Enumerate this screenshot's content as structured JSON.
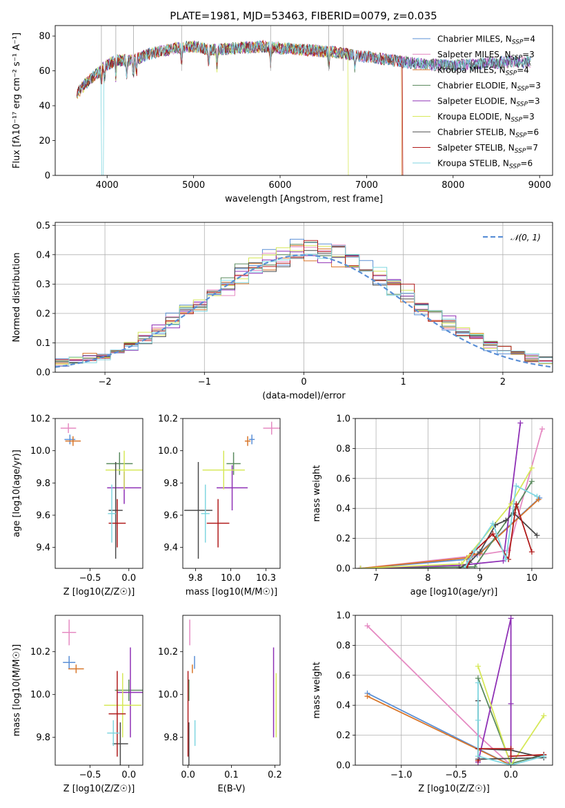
{
  "figure": {
    "title": "PLATE=1981, MJD=53463, FIBERID=0079, z=0.035"
  },
  "colors": {
    "Chabrier MILES": "#5a8fd6",
    "Salpeter MILES": "#e58ac2",
    "Kroupa MILES": "#d8762a",
    "Chabrier ELODIE": "#5a8a5e",
    "Salpeter ELODIE": "#8e2fb5",
    "Kroupa ELODIE": "#d6e858",
    "Chabrier STELIB": "#4a4a4a",
    "Salpeter STELIB": "#b01a1a",
    "Kroupa STELIB": "#7fd6e0"
  },
  "chart_data": [
    {
      "id": "spectrum",
      "type": "line",
      "xlabel": "wavelength [Angstrom, rest frame]",
      "ylabel": "Flux [fλ10⁻¹⁷ erg cm⁻² s⁻¹ A⁻¹]",
      "xlim": [
        3400,
        9150
      ],
      "ylim": [
        0,
        86
      ],
      "xticks": [
        4000,
        5000,
        6000,
        7000,
        8000,
        9000
      ],
      "yticks": [
        0,
        20,
        40,
        60,
        80
      ],
      "legend": [
        {
          "name": "Chabrier MILES, N",
          "sub": "SSP",
          "rest": "=4"
        },
        {
          "name": "Salpeter MILES, N",
          "sub": "SSP",
          "rest": "=3"
        },
        {
          "name": "Kroupa MILES, N",
          "sub": "SSP",
          "rest": "=4"
        },
        {
          "name": "Chabrier ELODIE, N",
          "sub": "SSP",
          "rest": "=3"
        },
        {
          "name": "Salpeter ELODIE, N",
          "sub": "SSP",
          "rest": "=3"
        },
        {
          "name": "Kroupa ELODIE, N",
          "sub": "SSP",
          "rest": "=3"
        },
        {
          "name": "Chabrier STELIB, N",
          "sub": "SSP",
          "rest": "=6"
        },
        {
          "name": "Salpeter STELIB, N",
          "sub": "SSP",
          "rest": "=7"
        },
        {
          "name": "Kroupa STELIB, N",
          "sub": "SSP",
          "rest": "=6"
        }
      ],
      "legend_placement": "top-right",
      "continuum": [
        [
          3650,
          46
        ],
        [
          3700,
          50
        ],
        [
          3800,
          55
        ],
        [
          3900,
          59
        ],
        [
          3950,
          62
        ],
        [
          4100,
          66
        ],
        [
          4300,
          66
        ],
        [
          4500,
          70
        ],
        [
          4800,
          73
        ],
        [
          5000,
          74
        ],
        [
          5200,
          72
        ],
        [
          5500,
          73
        ],
        [
          5800,
          74
        ],
        [
          6000,
          73
        ],
        [
          6300,
          72
        ],
        [
          6600,
          71
        ],
        [
          7000,
          68
        ],
        [
          7300,
          66
        ],
        [
          7600,
          64
        ],
        [
          8000,
          63
        ],
        [
          8300,
          64
        ],
        [
          8600,
          65
        ],
        [
          8900,
          65
        ]
      ],
      "absorption_lines": [
        3934,
        3969,
        4101,
        4227,
        4304,
        4340,
        4861,
        5175,
        5270,
        5890,
        6563,
        6867
      ],
      "cutoffs": [
        {
          "series": "Kroupa MILES",
          "at": 7410
        },
        {
          "series": "Salpeter STELIB",
          "at": 7420
        },
        {
          "series": "Kroupa ELODIE",
          "at": 6790
        }
      ]
    },
    {
      "id": "residuals",
      "type": "line",
      "xlabel": "(data-model)/error",
      "ylabel": "Normed distribution",
      "xlim": [
        -2.5,
        2.5
      ],
      "ylim": [
        0,
        0.51
      ],
      "xticks": [
        -2,
        -1,
        0,
        1,
        2
      ],
      "yticks": [
        0.0,
        0.1,
        0.2,
        0.3,
        0.4,
        0.5
      ],
      "grid": true,
      "legend": [
        {
          "name": "𝒩(0, 1)"
        }
      ],
      "legend_placement": "top-right",
      "gaussian": {
        "mean": 0,
        "sigma": 1
      }
    },
    {
      "id": "age-vs-Z",
      "type": "scatter",
      "xlabel": "Z [log10(Z/Z☉)]",
      "ylabel": "age  [log10(age/yr)]",
      "xlim": [
        -0.95,
        0.18
      ],
      "ylim": [
        9.27,
        10.2
      ],
      "xticks": [
        -0.5,
        0.0
      ],
      "yticks": [
        9.4,
        9.6,
        9.8,
        10.0,
        10.2
      ],
      "points": [
        {
          "series": "Chabrier MILES",
          "x": -0.76,
          "y": 10.07,
          "xerr": 0.07,
          "yerr": 0.03
        },
        {
          "series": "Salpeter MILES",
          "x": -0.78,
          "y": 10.14,
          "xerr": 0.1,
          "yerr": 0.03
        },
        {
          "series": "Kroupa MILES",
          "x": -0.72,
          "y": 10.06,
          "xerr": 0.1,
          "yerr": 0.03
        },
        {
          "series": "Chabrier ELODIE",
          "x": -0.12,
          "y": 9.92,
          "xerr": 0.17,
          "yerr": 0.07
        },
        {
          "series": "Salpeter ELODIE",
          "x": -0.06,
          "y": 9.77,
          "xerr": 0.22,
          "yerr": 0.1
        },
        {
          "series": "Kroupa ELODIE",
          "x": -0.06,
          "y": 9.88,
          "xerr": 0.24,
          "yerr": 0.12
        },
        {
          "series": "Chabrier STELIB",
          "x": -0.17,
          "y": 9.63,
          "xerr": 0.09,
          "yerr": 0.3
        },
        {
          "series": "Salpeter STELIB",
          "x": -0.15,
          "y": 9.55,
          "xerr": 0.11,
          "yerr": 0.15
        },
        {
          "series": "Kroupa STELIB",
          "x": -0.22,
          "y": 9.61,
          "xerr": 0.05,
          "yerr": 0.18
        }
      ]
    },
    {
      "id": "age-vs-mass",
      "type": "scatter",
      "xlabel": "mass [log10(M/M☉)]",
      "ylabel": "",
      "xlim": [
        9.66,
        10.35
      ],
      "ylim": [
        9.27,
        10.2
      ],
      "xticks": [
        9.75,
        10.0,
        10.25
      ],
      "yticks": [
        9.4,
        9.6,
        9.8,
        10.0,
        10.2
      ],
      "points": [
        {
          "series": "Chabrier MILES",
          "x": 10.15,
          "y": 10.07,
          "xerr": 0.02,
          "yerr": 0.03
        },
        {
          "series": "Salpeter MILES",
          "x": 10.29,
          "y": 10.14,
          "xerr": 0.06,
          "yerr": 0.04
        },
        {
          "series": "Kroupa MILES",
          "x": 10.12,
          "y": 10.06,
          "xerr": 0.02,
          "yerr": 0.03
        },
        {
          "series": "Chabrier ELODIE",
          "x": 10.02,
          "y": 9.92,
          "xerr": 0.05,
          "yerr": 0.07
        },
        {
          "series": "Salpeter ELODIE",
          "x": 10.01,
          "y": 9.77,
          "xerr": 0.11,
          "yerr": 0.14
        },
        {
          "series": "Kroupa ELODIE",
          "x": 9.95,
          "y": 9.88,
          "xerr": 0.15,
          "yerr": 0.12
        },
        {
          "series": "Chabrier STELIB",
          "x": 9.77,
          "y": 9.63,
          "xerr": 0.1,
          "yerr": 0.3
        },
        {
          "series": "Salpeter STELIB",
          "x": 9.91,
          "y": 9.55,
          "xerr": 0.08,
          "yerr": 0.15
        },
        {
          "series": "Kroupa STELIB",
          "x": 9.82,
          "y": 9.61,
          "xerr": 0.03,
          "yerr": 0.18
        }
      ]
    },
    {
      "id": "weight-vs-age",
      "type": "line",
      "xlabel": "age  [log10(age/yr)]",
      "ylabel": "mass weight",
      "xlim": [
        6.6,
        10.4
      ],
      "ylim": [
        0,
        1
      ],
      "xticks": [
        7,
        8,
        9,
        10
      ],
      "yticks": [
        0.0,
        0.2,
        0.4,
        0.6,
        0.8,
        1.0
      ],
      "grid": true,
      "series": [
        {
          "name": "Chabrier MILES",
          "points": [
            [
              6.7,
              0
            ],
            [
              8.75,
              0.06
            ],
            [
              8.85,
              0.08
            ],
            [
              8.95,
              0.09
            ],
            [
              10.15,
              0.47
            ]
          ]
        },
        {
          "name": "Salpeter MILES",
          "points": [
            [
              6.7,
              0
            ],
            [
              8.8,
              0.08
            ],
            [
              9.55,
              0.12
            ],
            [
              10.2,
              0.93
            ]
          ]
        },
        {
          "name": "Kroupa MILES",
          "points": [
            [
              6.7,
              0
            ],
            [
              8.75,
              0.07
            ],
            [
              8.85,
              0.09
            ],
            [
              9.0,
              0.1
            ],
            [
              10.13,
              0.46
            ]
          ]
        },
        {
          "name": "Chabrier ELODIE",
          "points": [
            [
              6.7,
              0
            ],
            [
              8.9,
              0.01
            ],
            [
              9.7,
              0.41
            ],
            [
              10.0,
              0.58
            ]
          ]
        },
        {
          "name": "Salpeter ELODIE",
          "points": [
            [
              6.7,
              0
            ],
            [
              8.6,
              0.02
            ],
            [
              9.45,
              0.05
            ],
            [
              9.78,
              0.97
            ]
          ]
        },
        {
          "name": "Kroupa ELODIE",
          "points": [
            [
              6.7,
              0
            ],
            [
              8.65,
              0.03
            ],
            [
              9.6,
              0.43
            ],
            [
              10.0,
              0.67
            ]
          ]
        },
        {
          "name": "Chabrier STELIB",
          "points": [
            [
              8.6,
              0
            ],
            [
              8.8,
              0.04
            ],
            [
              9.0,
              0.11
            ],
            [
              9.3,
              0.29
            ],
            [
              9.5,
              0.32
            ],
            [
              9.65,
              0.37
            ],
            [
              10.1,
              0.22
            ]
          ]
        },
        {
          "name": "Salpeter STELIB",
          "points": [
            [
              8.75,
              0
            ],
            [
              8.85,
              0.1
            ],
            [
              9.25,
              0.23
            ],
            [
              9.55,
              0.06
            ],
            [
              9.7,
              0.43
            ],
            [
              10.0,
              0.11
            ]
          ]
        },
        {
          "name": "Kroupa STELIB",
          "points": [
            [
              8.7,
              0
            ],
            [
              8.9,
              0.12
            ],
            [
              9.25,
              0.3
            ],
            [
              9.5,
              0.06
            ],
            [
              9.7,
              0.55
            ],
            [
              10.1,
              0.48
            ]
          ]
        }
      ]
    },
    {
      "id": "mass-vs-Z",
      "type": "scatter",
      "xlabel": "Z [log10(Z/Z☉)]",
      "ylabel": "mass [log10(M/M☉)]",
      "xlim": [
        -0.95,
        0.18
      ],
      "ylim": [
        9.67,
        10.37
      ],
      "xticks": [
        -0.5,
        0.0
      ],
      "yticks": [
        9.8,
        10.0,
        10.2
      ],
      "points": [
        {
          "series": "Chabrier MILES",
          "x": -0.77,
          "y": 10.15,
          "xerr": 0.08,
          "yerr": 0.03
        },
        {
          "series": "Salpeter MILES",
          "x": -0.77,
          "y": 10.29,
          "xerr": 0.09,
          "yerr": 0.06
        },
        {
          "series": "Kroupa MILES",
          "x": -0.68,
          "y": 10.12,
          "xerr": 0.1,
          "yerr": 0.02
        },
        {
          "series": "Chabrier ELODIE",
          "x": 0.0,
          "y": 10.02,
          "xerr": 0.18,
          "yerr": 0.05
        },
        {
          "series": "Salpeter ELODIE",
          "x": 0.02,
          "y": 10.01,
          "xerr": 0.17,
          "yerr": 0.21
        },
        {
          "series": "Kroupa ELODIE",
          "x": -0.08,
          "y": 9.95,
          "xerr": 0.24,
          "yerr": 0.15
        },
        {
          "series": "Chabrier STELIB",
          "x": -0.11,
          "y": 9.77,
          "xerr": 0.1,
          "yerr": 0.1
        },
        {
          "series": "Salpeter STELIB",
          "x": -0.15,
          "y": 9.91,
          "xerr": 0.11,
          "yerr": 0.2
        },
        {
          "series": "Kroupa STELIB",
          "x": -0.2,
          "y": 9.82,
          "xerr": 0.08,
          "yerr": 0.06
        }
      ]
    },
    {
      "id": "mass-vs-EBV",
      "type": "scatter",
      "xlabel": "E(B-V)",
      "ylabel": "",
      "xlim": [
        -0.012,
        0.212
      ],
      "ylim": [
        9.67,
        10.37
      ],
      "xticks": [
        0.0,
        0.1,
        0.2
      ],
      "yticks": [
        9.8,
        10.0,
        10.2
      ],
      "points": [
        {
          "series": "Chabrier MILES",
          "x": 0.015,
          "y": 10.15,
          "xerr": 0.0,
          "yerr": 0.03
        },
        {
          "series": "Salpeter MILES",
          "x": 0.004,
          "y": 10.29,
          "xerr": 0.0,
          "yerr": 0.06
        },
        {
          "series": "Kroupa MILES",
          "x": 0.01,
          "y": 10.12,
          "xerr": 0.0,
          "yerr": 0.02
        },
        {
          "series": "Chabrier ELODIE",
          "x": 0.002,
          "y": 10.02,
          "xerr": 0.0,
          "yerr": 0.05
        },
        {
          "series": "Salpeter ELODIE",
          "x": 0.197,
          "y": 10.01,
          "xerr": 0.0,
          "yerr": 0.21
        },
        {
          "series": "Kroupa ELODIE",
          "x": 0.203,
          "y": 9.95,
          "xerr": 0.0,
          "yerr": 0.15
        },
        {
          "series": "Chabrier STELIB",
          "x": 0.002,
          "y": 9.77,
          "xerr": 0.0,
          "yerr": 0.1
        },
        {
          "series": "Salpeter STELIB",
          "x": 0.0,
          "y": 9.91,
          "xerr": 0.0,
          "yerr": 0.2
        },
        {
          "series": "Kroupa STELIB",
          "x": 0.016,
          "y": 9.82,
          "xerr": 0.0,
          "yerr": 0.06
        }
      ]
    },
    {
      "id": "weight-vs-Z",
      "type": "line",
      "xlabel": "Z [log10(Z/Z☉)]",
      "ylabel": "mass weight",
      "xlim": [
        -1.42,
        0.38
      ],
      "ylim": [
        0,
        1
      ],
      "xticks": [
        -1.0,
        -0.5,
        0.0
      ],
      "yticks": [
        0.0,
        0.2,
        0.4,
        0.6,
        0.8,
        1.0
      ],
      "grid": true,
      "series": [
        {
          "name": "Chabrier MILES",
          "points": [
            [
              -1.31,
              0.48
            ],
            [
              0.0,
              0.0
            ],
            [
              0.0,
              0.02
            ]
          ]
        },
        {
          "name": "Salpeter MILES",
          "points": [
            [
              -1.31,
              0.93
            ],
            [
              -0.3,
              0.2
            ],
            [
              0.0,
              0.0
            ]
          ]
        },
        {
          "name": "Kroupa MILES",
          "points": [
            [
              -1.31,
              0.46
            ],
            [
              0.0,
              0.0
            ],
            [
              0.0,
              0.01
            ]
          ]
        },
        {
          "name": "Chabrier ELODIE",
          "points": [
            [
              -0.3,
              0.58
            ],
            [
              0.0,
              0.01
            ],
            [
              0.3,
              0.07
            ]
          ]
        },
        {
          "name": "Salpeter ELODIE",
          "points": [
            [
              -0.3,
              0.02
            ],
            [
              0.0,
              0.98
            ],
            [
              0.0,
              0.41
            ],
            [
              0.0,
              0.0
            ]
          ]
        },
        {
          "name": "Kroupa ELODIE",
          "points": [
            [
              -0.3,
              0.66
            ],
            [
              0.0,
              0.0
            ],
            [
              0.3,
              0.33
            ]
          ]
        },
        {
          "name": "Chabrier STELIB",
          "points": [
            [
              -0.3,
              0.43
            ],
            [
              -0.3,
              0.11
            ],
            [
              0.0,
              0.1
            ],
            [
              0.3,
              0.05
            ],
            [
              -0.3,
              0.04
            ]
          ]
        },
        {
          "name": "Salpeter STELIB",
          "points": [
            [
              -0.3,
              0.03
            ],
            [
              -0.3,
              0.11
            ],
            [
              0.0,
              0.11
            ],
            [
              0.0,
              0.06
            ],
            [
              0.3,
              0.07
            ]
          ]
        },
        {
          "name": "Kroupa STELIB",
          "points": [
            [
              -0.3,
              0.55
            ],
            [
              -0.3,
              0.3
            ],
            [
              -0.3,
              0.06
            ],
            [
              0.0,
              0.0
            ],
            [
              0.3,
              0.06
            ]
          ]
        }
      ]
    }
  ]
}
